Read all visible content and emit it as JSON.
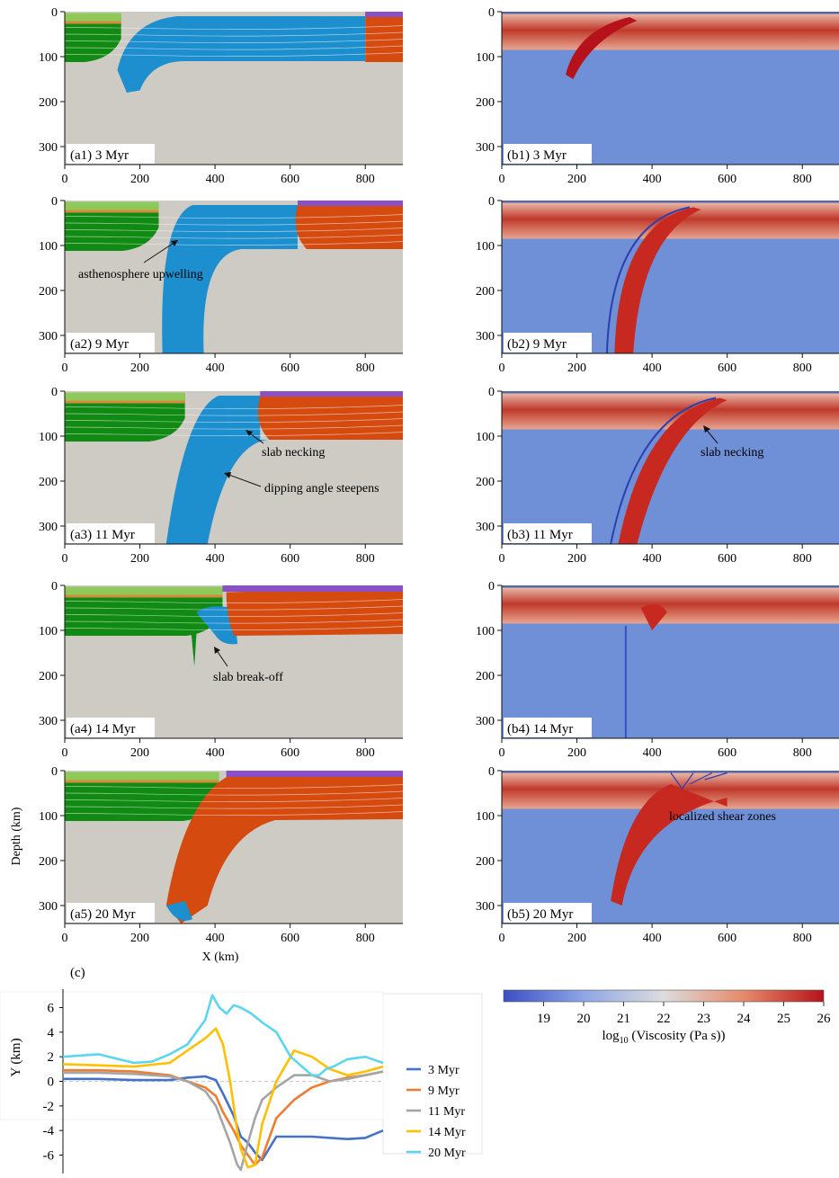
{
  "figure": {
    "panel_labels_a": [
      "(a1) 3 Myr",
      "(a2) 9 Myr",
      "(a3) 11 Myr",
      "(a4) 14 Myr",
      "(a5) 20 Myr"
    ],
    "panel_labels_b": [
      "(b1) 3 Myr",
      "(b2) 9 Myr",
      "(b3) 11 Myr",
      "(b4) 14 Myr",
      "(b5) 20 Myr"
    ],
    "x_ticks": [
      "0",
      "200",
      "400",
      "600",
      "800"
    ],
    "y_ticks": [
      "0",
      "100",
      "200",
      "300"
    ],
    "x_axis_label": "X (km)",
    "y_axis_label": "Depth (km)",
    "annotations": {
      "a2": "asthenosphere upwelling",
      "a3_neck": "slab necking",
      "a3_dip": "dipping angle steepens",
      "b3": "slab necking",
      "a4": "slab break-off",
      "b5": "localized shear zones"
    },
    "panel_c_label": "(c)",
    "colors": {
      "asthenosphere": "#cdcbc4",
      "overriding_lithosphere": "#118a13",
      "upper_crust": "#8fc95a",
      "slab_blue": "#1d8fce",
      "continent_orange": "#d44a0f",
      "continent_purple": "#8b4fc6",
      "visc_low": "#3b4fc4",
      "visc_high": "#b5121b"
    }
  },
  "colorbar": {
    "ticks": [
      "19",
      "20",
      "21",
      "22",
      "23",
      "24",
      "25",
      "26"
    ],
    "label_prefix": "log",
    "label_sub": "10",
    "label_suffix": " (Viscosity (Pa s))",
    "range": [
      18,
      26
    ]
  },
  "chart_data": {
    "type": "line",
    "title": "",
    "xlabel": "",
    "ylabel": "Y (km)",
    "ylim": [
      -7.5,
      7.5
    ],
    "yticks": [
      6,
      4,
      2,
      0,
      -2,
      -4,
      -6
    ],
    "xlim": [
      0,
      900
    ],
    "series": [
      {
        "name": "3 Myr",
        "color": "#4472c4",
        "x": [
          0,
          100,
          200,
          300,
          350,
          400,
          430,
          450,
          480,
          500,
          520,
          540,
          560,
          600,
          700,
          800,
          850,
          900
        ],
        "y": [
          0.2,
          0.2,
          0.1,
          0.1,
          0.3,
          0.4,
          0.1,
          -1.0,
          -2.8,
          -4.5,
          -5.0,
          -5.8,
          -6.4,
          -4.5,
          -4.5,
          -4.7,
          -4.6,
          -4.0
        ]
      },
      {
        "name": "9 Myr",
        "color": "#ed7d31",
        "x": [
          0,
          100,
          200,
          300,
          350,
          400,
          430,
          450,
          480,
          500,
          520,
          540,
          560,
          600,
          650,
          700,
          750,
          800,
          850,
          900
        ],
        "y": [
          0.9,
          0.9,
          0.8,
          0.5,
          0.0,
          -0.5,
          -1.2,
          -2.5,
          -4.0,
          -5.2,
          -6.0,
          -6.8,
          -6.2,
          -3.0,
          -1.5,
          -0.5,
          0.0,
          0.3,
          0.5,
          0.8
        ]
      },
      {
        "name": "11 Myr",
        "color": "#a5a5a5",
        "x": [
          0,
          100,
          200,
          300,
          350,
          400,
          430,
          450,
          470,
          490,
          500,
          520,
          540,
          560,
          600,
          650,
          700,
          750,
          800,
          850,
          900
        ],
        "y": [
          0.7,
          0.7,
          0.6,
          0.4,
          0.0,
          -0.8,
          -2.0,
          -3.5,
          -5.0,
          -6.8,
          -7.2,
          -5.0,
          -3.0,
          -1.5,
          -0.5,
          0.5,
          0.5,
          0.0,
          0.2,
          0.5,
          0.8
        ]
      },
      {
        "name": "14 Myr",
        "color": "#ffc000",
        "x": [
          0,
          100,
          200,
          300,
          350,
          400,
          430,
          450,
          470,
          490,
          500,
          520,
          540,
          560,
          600,
          650,
          700,
          750,
          800,
          850,
          900
        ],
        "y": [
          1.4,
          1.3,
          1.2,
          1.5,
          2.5,
          3.5,
          4.3,
          3.0,
          0.0,
          -4.0,
          -5.5,
          -7.0,
          -6.8,
          -3.5,
          0.0,
          2.5,
          2.0,
          1.0,
          0.5,
          0.8,
          1.2
        ]
      },
      {
        "name": "20 Myr",
        "color": "#5bd6ee",
        "x": [
          0,
          100,
          200,
          250,
          300,
          350,
          400,
          420,
          440,
          460,
          480,
          500,
          530,
          560,
          600,
          640,
          680,
          700,
          720,
          740,
          760,
          800,
          850,
          900
        ],
        "y": [
          2.0,
          2.2,
          1.5,
          1.6,
          2.2,
          3.0,
          5.0,
          7.0,
          6.0,
          5.5,
          6.2,
          6.0,
          5.5,
          4.8,
          4.0,
          2.0,
          1.0,
          0.5,
          0.5,
          1.0,
          1.2,
          1.8,
          2.0,
          1.5
        ]
      }
    ]
  }
}
